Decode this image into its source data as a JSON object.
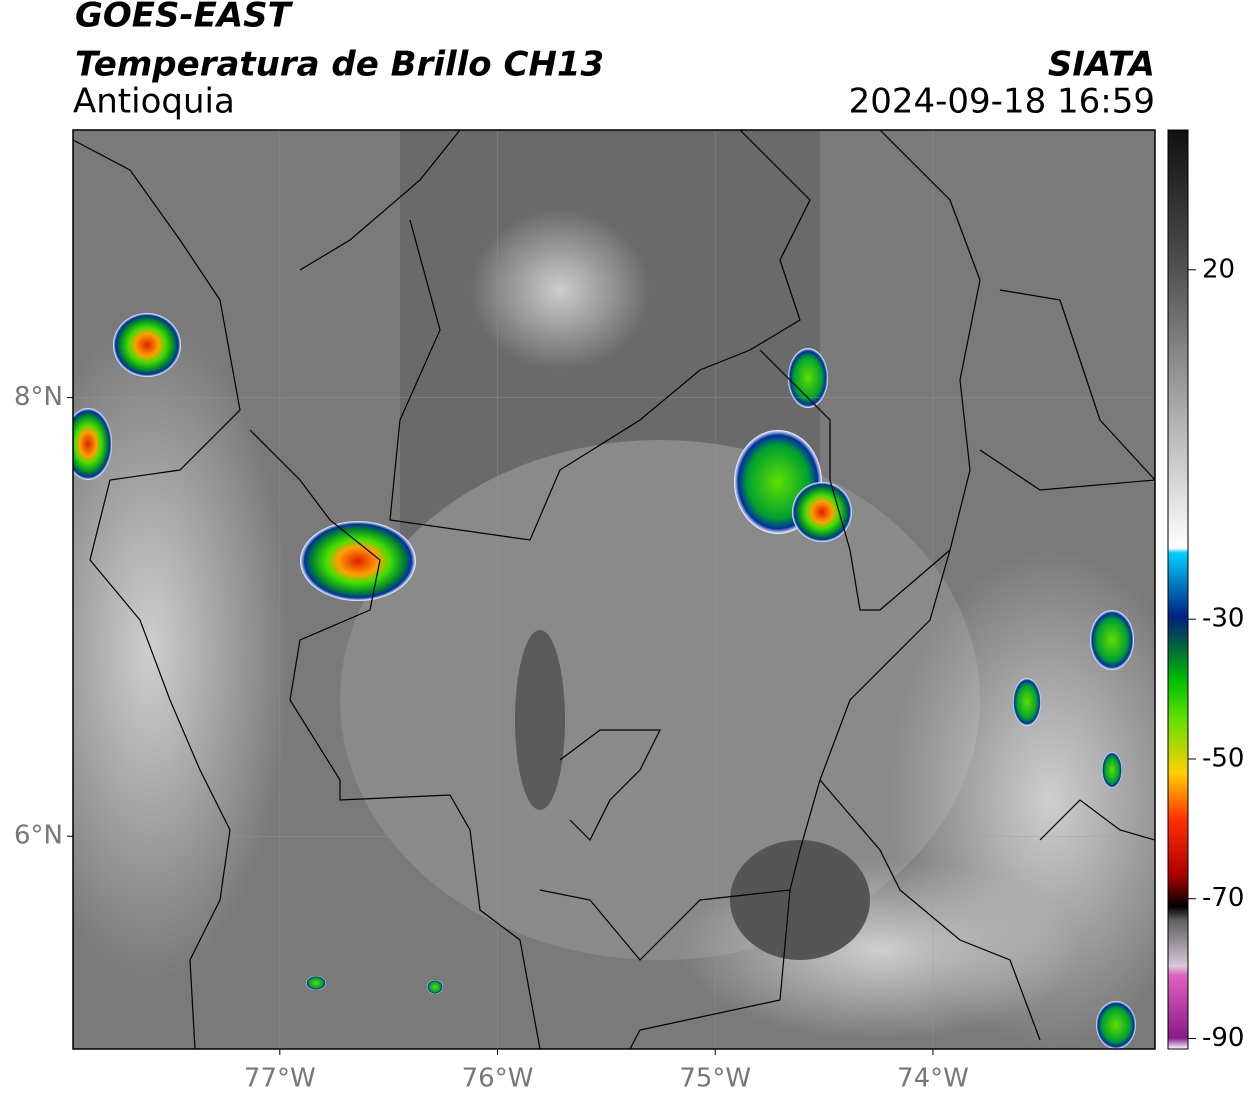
{
  "header": {
    "title": "GOES-EAST",
    "subtitle": "Temperatura de Brillo CH13",
    "region": "Antioquia",
    "source": "SIATA",
    "datetime": "2024-09-18 16:59"
  },
  "map": {
    "xlim": [
      -77.95,
      -72.98
    ],
    "ylim": [
      5.03,
      9.22
    ],
    "xticks": [
      {
        "value": -77,
        "label": "77°W"
      },
      {
        "value": -76,
        "label": "76°W"
      },
      {
        "value": -75,
        "label": "75°W"
      },
      {
        "value": -74,
        "label": "74°W"
      }
    ],
    "yticks": [
      {
        "value": 8,
        "label": "8°N"
      },
      {
        "value": 6,
        "label": "6°N"
      }
    ],
    "grid": true
  },
  "colorbar": {
    "lim": [
      -91.5,
      40
    ],
    "ticks": [
      20,
      -30,
      -50,
      -70,
      -90
    ]
  }
}
